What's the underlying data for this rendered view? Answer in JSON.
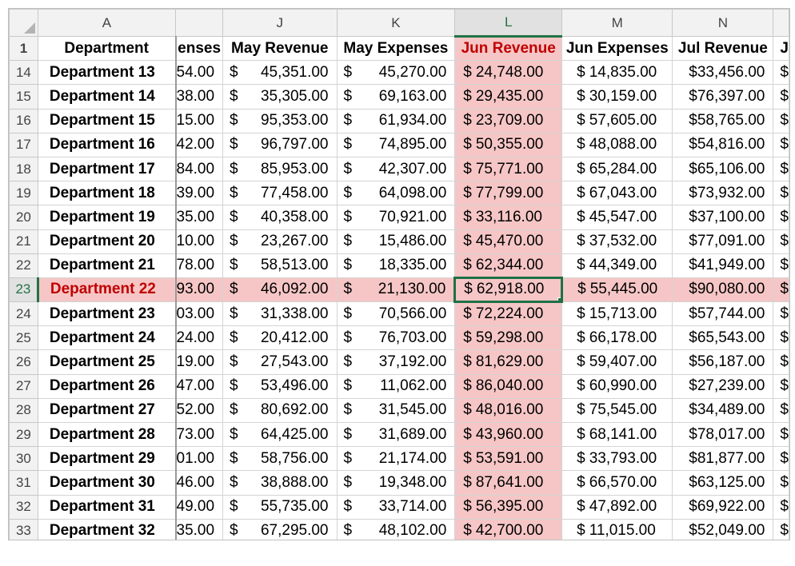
{
  "sheet": {
    "columns": [
      "A",
      "J",
      "K",
      "L",
      "M",
      "N"
    ],
    "selected_column": "L",
    "header_row": {
      "row_number": "1",
      "department": "Department",
      "partial_col": "enses",
      "may_revenue": "May Revenue",
      "may_expenses": "May Expenses",
      "jun_revenue": "Jun Revenue",
      "jun_expenses": "Jun Expenses",
      "jul_revenue": "Jul Revenue",
      "edge": "J"
    },
    "currency_symbol": "$",
    "selected_row": "23",
    "active_cell": "L23",
    "rows": [
      {
        "row_number": "14",
        "department": "Department 13",
        "partial": "54.00",
        "may_revenue": "45,351.00",
        "may_expenses": "45,270.00",
        "jun_revenue": "24,748.00",
        "jun_expenses": "14,835.00",
        "jul_revenue": "$33,456.00",
        "edge": "$"
      },
      {
        "row_number": "15",
        "department": "Department 14",
        "partial": "38.00",
        "may_revenue": "35,305.00",
        "may_expenses": "69,163.00",
        "jun_revenue": "29,435.00",
        "jun_expenses": "30,159.00",
        "jul_revenue": "$76,397.00",
        "edge": "$"
      },
      {
        "row_number": "16",
        "department": "Department 15",
        "partial": "15.00",
        "may_revenue": "95,353.00",
        "may_expenses": "61,934.00",
        "jun_revenue": "23,709.00",
        "jun_expenses": "57,605.00",
        "jul_revenue": "$58,765.00",
        "edge": "$"
      },
      {
        "row_number": "17",
        "department": "Department 16",
        "partial": "42.00",
        "may_revenue": "96,797.00",
        "may_expenses": "74,895.00",
        "jun_revenue": "50,355.00",
        "jun_expenses": "48,088.00",
        "jul_revenue": "$54,816.00",
        "edge": "$"
      },
      {
        "row_number": "18",
        "department": "Department 17",
        "partial": "84.00",
        "may_revenue": "85,953.00",
        "may_expenses": "42,307.00",
        "jun_revenue": "75,771.00",
        "jun_expenses": "65,284.00",
        "jul_revenue": "$65,106.00",
        "edge": "$"
      },
      {
        "row_number": "19",
        "department": "Department 18",
        "partial": "39.00",
        "may_revenue": "77,458.00",
        "may_expenses": "64,098.00",
        "jun_revenue": "77,799.00",
        "jun_expenses": "67,043.00",
        "jul_revenue": "$73,932.00",
        "edge": "$"
      },
      {
        "row_number": "20",
        "department": "Department 19",
        "partial": "35.00",
        "may_revenue": "40,358.00",
        "may_expenses": "70,921.00",
        "jun_revenue": "33,116.00",
        "jun_expenses": "45,547.00",
        "jul_revenue": "$37,100.00",
        "edge": "$"
      },
      {
        "row_number": "21",
        "department": "Department 20",
        "partial": "10.00",
        "may_revenue": "23,267.00",
        "may_expenses": "15,486.00",
        "jun_revenue": "45,470.00",
        "jun_expenses": "37,532.00",
        "jul_revenue": "$77,091.00",
        "edge": "$"
      },
      {
        "row_number": "22",
        "department": "Department 21",
        "partial": "78.00",
        "may_revenue": "58,513.00",
        "may_expenses": "18,335.00",
        "jun_revenue": "62,344.00",
        "jun_expenses": "44,349.00",
        "jul_revenue": "$41,949.00",
        "edge": "$"
      },
      {
        "row_number": "23",
        "department": "Department 22",
        "partial": "93.00",
        "may_revenue": "46,092.00",
        "may_expenses": "21,130.00",
        "jun_revenue": "62,918.00",
        "jun_expenses": "55,445.00",
        "jul_revenue": "$90,080.00",
        "edge": "$"
      },
      {
        "row_number": "24",
        "department": "Department 23",
        "partial": "03.00",
        "may_revenue": "31,338.00",
        "may_expenses": "70,566.00",
        "jun_revenue": "72,224.00",
        "jun_expenses": "15,713.00",
        "jul_revenue": "$57,744.00",
        "edge": "$"
      },
      {
        "row_number": "25",
        "department": "Department 24",
        "partial": "24.00",
        "may_revenue": "20,412.00",
        "may_expenses": "76,703.00",
        "jun_revenue": "59,298.00",
        "jun_expenses": "66,178.00",
        "jul_revenue": "$65,543.00",
        "edge": "$"
      },
      {
        "row_number": "26",
        "department": "Department 25",
        "partial": "19.00",
        "may_revenue": "27,543.00",
        "may_expenses": "37,192.00",
        "jun_revenue": "81,629.00",
        "jun_expenses": "59,407.00",
        "jul_revenue": "$56,187.00",
        "edge": "$"
      },
      {
        "row_number": "27",
        "department": "Department 26",
        "partial": "47.00",
        "may_revenue": "53,496.00",
        "may_expenses": "11,062.00",
        "jun_revenue": "86,040.00",
        "jun_expenses": "60,990.00",
        "jul_revenue": "$27,239.00",
        "edge": "$"
      },
      {
        "row_number": "28",
        "department": "Department 27",
        "partial": "52.00",
        "may_revenue": "80,692.00",
        "may_expenses": "31,545.00",
        "jun_revenue": "48,016.00",
        "jun_expenses": "75,545.00",
        "jul_revenue": "$34,489.00",
        "edge": "$"
      },
      {
        "row_number": "29",
        "department": "Department 28",
        "partial": "73.00",
        "may_revenue": "64,425.00",
        "may_expenses": "31,689.00",
        "jun_revenue": "43,960.00",
        "jun_expenses": "68,141.00",
        "jul_revenue": "$78,017.00",
        "edge": "$"
      },
      {
        "row_number": "30",
        "department": "Department 29",
        "partial": "01.00",
        "may_revenue": "58,756.00",
        "may_expenses": "21,174.00",
        "jun_revenue": "53,591.00",
        "jun_expenses": "33,793.00",
        "jul_revenue": "$81,877.00",
        "edge": "$"
      },
      {
        "row_number": "31",
        "department": "Department 30",
        "partial": "46.00",
        "may_revenue": "38,888.00",
        "may_expenses": "19,348.00",
        "jun_revenue": "87,641.00",
        "jun_expenses": "66,570.00",
        "jul_revenue": "$63,125.00",
        "edge": "$"
      },
      {
        "row_number": "32",
        "department": "Department 31",
        "partial": "49.00",
        "may_revenue": "55,735.00",
        "may_expenses": "33,714.00",
        "jun_revenue": "56,395.00",
        "jun_expenses": "47,892.00",
        "jul_revenue": "$69,922.00",
        "edge": "$"
      },
      {
        "row_number": "33",
        "department": "Department 32",
        "partial": "35.00",
        "may_revenue": "67,295.00",
        "may_expenses": "48,102.00",
        "jun_revenue": "42,700.00",
        "jun_expenses": "11,015.00",
        "jul_revenue": "$52,049.00",
        "edge": "$"
      }
    ],
    "colors": {
      "highlight_fill": "#f6c6c6",
      "highlight_text": "#c00000",
      "selection_border": "#1e7145",
      "header_fill": "#f2f2f2"
    }
  }
}
